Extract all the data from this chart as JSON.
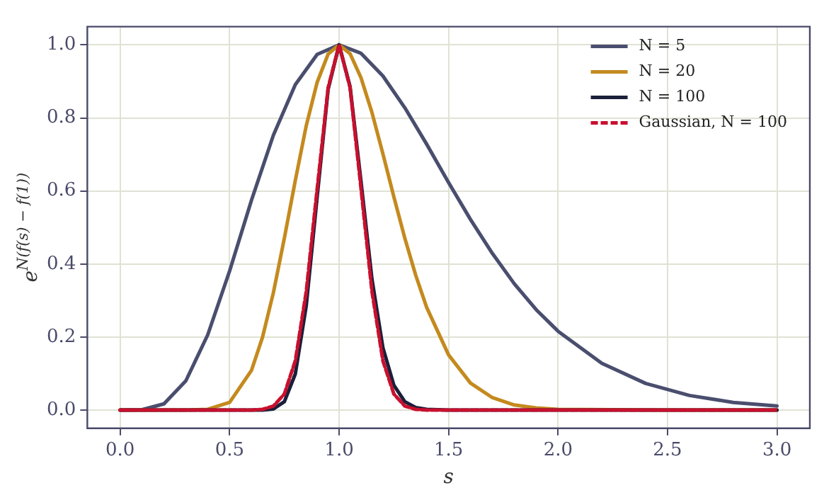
{
  "chart_data": {
    "type": "line",
    "xlabel": "s",
    "ylabel": "e$^{N(f(s) − f(1))}$",
    "xlim": [
      -0.15,
      3.15
    ],
    "ylim": [
      -0.05,
      1.05
    ],
    "xticks": [
      {
        "value": 0,
        "label": "0.0"
      },
      {
        "value": 0.5,
        "label": "0.5"
      },
      {
        "value": 1,
        "label": "1.0"
      },
      {
        "value": 1.5,
        "label": "1.5"
      },
      {
        "value": 2,
        "label": "2.0"
      },
      {
        "value": 2.5,
        "label": "2.5"
      },
      {
        "value": 3,
        "label": "3.0"
      }
    ],
    "yticks": [
      {
        "value": 0,
        "label": "0.0"
      },
      {
        "value": 0.2,
        "label": "0.2"
      },
      {
        "value": 0.4,
        "label": "0.4"
      },
      {
        "value": 0.6,
        "label": "0.6"
      },
      {
        "value": 0.8,
        "label": "0.8"
      },
      {
        "value": 1,
        "label": "1.0"
      }
    ],
    "grid": true,
    "legend": "top right",
    "series": [
      {
        "name": "N = 5",
        "color": "#4a4e6e",
        "x": [
          0,
          0.1,
          0.2,
          0.3,
          0.4,
          0.5,
          0.6,
          0.7,
          0.8,
          0.9,
          1,
          1.1,
          1.2,
          1.3,
          1.4,
          1.5,
          1.6,
          1.7,
          1.8,
          1.9,
          2,
          2.2,
          2.4,
          2.6,
          2.8,
          3
        ],
        "values": [
          0,
          0.001,
          0.017,
          0.08,
          0.206,
          0.381,
          0.575,
          0.753,
          0.891,
          0.974,
          1,
          0.977,
          0.915,
          0.828,
          0.728,
          0.623,
          0.522,
          0.429,
          0.346,
          0.275,
          0.216,
          0.128,
          0.073,
          0.04,
          0.021,
          0.011
        ]
      },
      {
        "name": "N = 20",
        "color": "#c48a1e",
        "x": [
          0,
          0.3,
          0.4,
          0.5,
          0.6,
          0.65,
          0.7,
          0.75,
          0.8,
          0.85,
          0.9,
          0.95,
          1,
          1.05,
          1.1,
          1.15,
          1.2,
          1.25,
          1.3,
          1.35,
          1.4,
          1.5,
          1.6,
          1.7,
          1.8,
          1.9,
          2,
          2.5,
          3
        ],
        "values": [
          0,
          0,
          0.002,
          0.021,
          0.109,
          0.199,
          0.322,
          0.471,
          0.629,
          0.779,
          0.898,
          0.975,
          1,
          0.976,
          0.91,
          0.815,
          0.702,
          0.584,
          0.471,
          0.369,
          0.281,
          0.151,
          0.074,
          0.034,
          0.014,
          0.006,
          0.002,
          0,
          0
        ]
      },
      {
        "name": "N = 100",
        "color": "#1a1f3a",
        "x": [
          0,
          0.5,
          0.6,
          0.65,
          0.7,
          0.75,
          0.8,
          0.85,
          0.9,
          0.95,
          1,
          1.05,
          1.1,
          1.15,
          1.2,
          1.25,
          1.3,
          1.35,
          1.4,
          1.5,
          2,
          3
        ],
        "values": [
          0,
          0,
          0,
          0,
          0.003,
          0.023,
          0.099,
          0.286,
          0.585,
          0.879,
          1,
          0.886,
          0.626,
          0.359,
          0.171,
          0.068,
          0.023,
          0.007,
          0.002,
          0,
          0,
          0
        ]
      },
      {
        "name": "Gaussian, N = 100",
        "color": "#c8102e",
        "line_style": "dashed",
        "x": [
          0,
          0.5,
          0.6,
          0.65,
          0.7,
          0.75,
          0.8,
          0.85,
          0.9,
          0.95,
          1,
          1.05,
          1.1,
          1.15,
          1.2,
          1.25,
          1.3,
          1.35,
          1.4,
          1.5,
          2,
          3
        ],
        "values": [
          0,
          0,
          0,
          0.002,
          0.011,
          0.044,
          0.135,
          0.325,
          0.607,
          0.883,
          1,
          0.883,
          0.607,
          0.325,
          0.135,
          0.044,
          0.011,
          0.002,
          0,
          0,
          0,
          0
        ]
      }
    ]
  }
}
